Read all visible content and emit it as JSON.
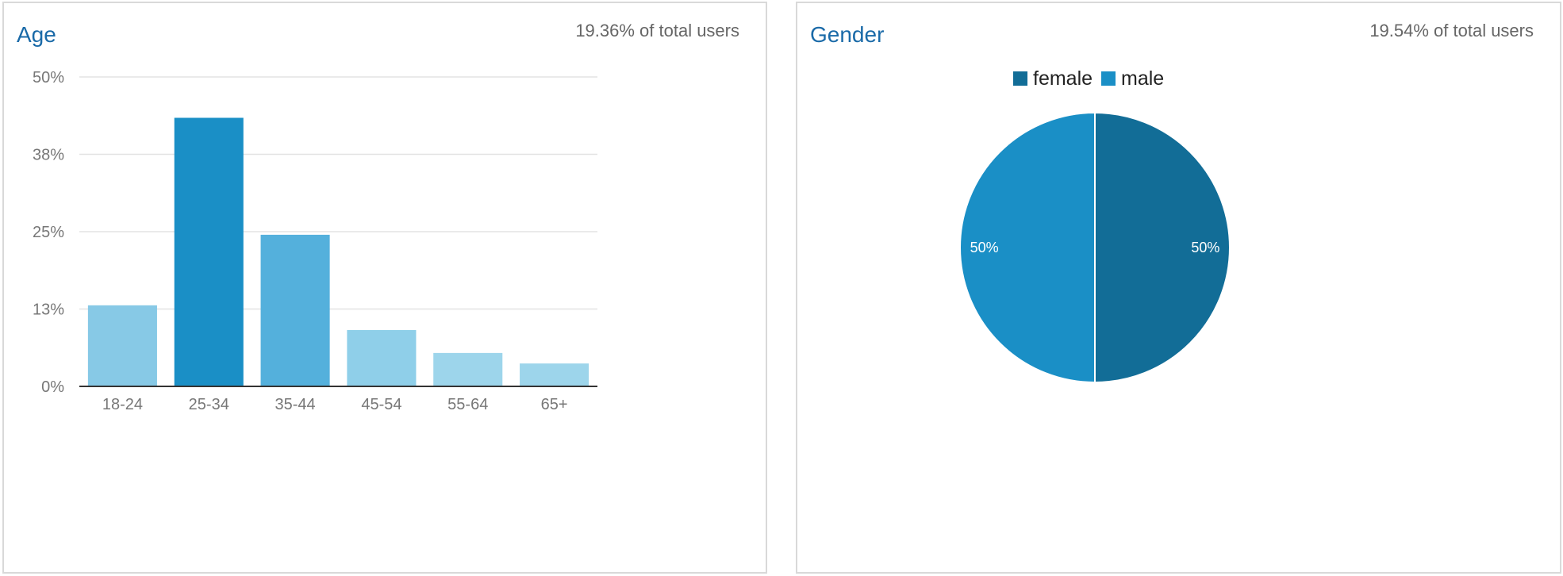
{
  "age_panel": {
    "title": "Age",
    "subtitle": "19.36% of total users"
  },
  "gender_panel": {
    "title": "Gender",
    "subtitle": "19.54% of total users"
  },
  "chart_data": [
    {
      "type": "bar",
      "title": "Age",
      "categories": [
        "18-24",
        "25-34",
        "35-44",
        "45-54",
        "55-64",
        "65+"
      ],
      "values": [
        13.1,
        43.4,
        24.5,
        9.1,
        5.4,
        3.7
      ],
      "colors": [
        "#87c9e6",
        "#1a8fc6",
        "#54b0dc",
        "#8fcfe9",
        "#9dd5eb",
        "#9dd5eb"
      ],
      "y_ticks": [
        {
          "value": 0,
          "label": "0%"
        },
        {
          "value": 12.5,
          "label": "13%"
        },
        {
          "value": 25,
          "label": "25%"
        },
        {
          "value": 37.5,
          "label": "38%"
        },
        {
          "value": 50,
          "label": "50%"
        }
      ],
      "ylim": [
        0,
        50
      ],
      "grid": true
    },
    {
      "type": "pie",
      "title": "Gender",
      "legend_position": "top",
      "slices": [
        {
          "label": "female",
          "value": 50,
          "display": "50%",
          "color": "#126d97"
        },
        {
          "label": "male",
          "value": 50,
          "display": "50%",
          "color": "#1a8fc6"
        }
      ]
    }
  ]
}
